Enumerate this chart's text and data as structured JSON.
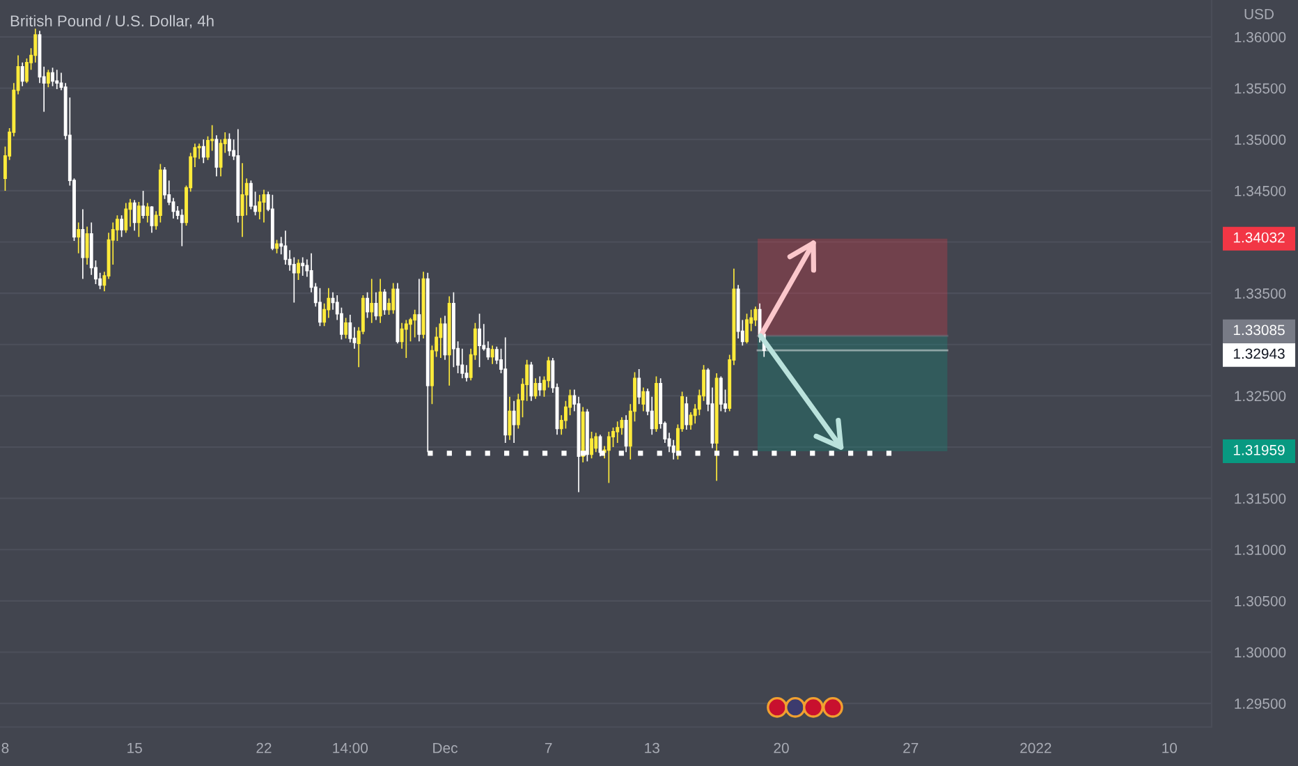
{
  "chart_data": {
    "type": "candlestick",
    "title": "British Pound / U.S. Dollar, 4h",
    "ylabel": "USD",
    "categories": [
      "8",
      null,
      null,
      null,
      null,
      null,
      null,
      null,
      null,
      null,
      null,
      null,
      null,
      null,
      null,
      null,
      null,
      null,
      null,
      null,
      null,
      null,
      null,
      null,
      null,
      null,
      null,
      null,
      null,
      null,
      "15",
      null,
      null,
      null,
      null,
      null,
      null,
      null,
      null,
      null,
      null,
      null,
      null,
      null,
      null,
      null,
      null,
      null,
      null,
      null,
      null,
      null,
      null,
      null,
      null,
      null,
      null,
      null,
      null,
      null,
      "22",
      null,
      null,
      null,
      null,
      null,
      null,
      null,
      null,
      null,
      null,
      null,
      null,
      null,
      null,
      null,
      null,
      null,
      null,
      null,
      "14:00",
      null,
      null,
      null,
      null,
      null,
      null,
      null,
      null,
      null,
      null,
      null,
      null,
      null,
      null,
      null,
      null,
      null,
      null,
      null,
      null,
      null,
      "Dec",
      null,
      null,
      null,
      null,
      null,
      null,
      null,
      null,
      null,
      null,
      null,
      null,
      null,
      null,
      null,
      null,
      null,
      null,
      null,
      null,
      null,
      null,
      null,
      "7",
      null,
      null,
      null,
      null,
      null,
      null,
      null,
      null,
      null,
      null,
      null,
      null,
      null,
      null,
      null,
      null,
      null,
      null,
      null,
      null,
      null,
      null,
      null,
      "13",
      null,
      null,
      null,
      null,
      null,
      null,
      null,
      null,
      null,
      null,
      null,
      null,
      null,
      null,
      null,
      null,
      null,
      null,
      null,
      null,
      null,
      null,
      null,
      null,
      null,
      null,
      null,
      null,
      null,
      "20",
      null,
      null,
      null,
      null,
      null,
      null,
      null,
      null,
      null,
      null,
      null,
      null,
      null,
      null,
      null,
      null,
      null,
      null,
      null,
      null,
      null,
      null,
      null,
      null,
      null,
      null,
      null,
      null,
      null,
      "27",
      null,
      null,
      null,
      null,
      null,
      null,
      null,
      null,
      null,
      null,
      null,
      null,
      null,
      null,
      null,
      null,
      null,
      null,
      null,
      null,
      null,
      null,
      null,
      null,
      null,
      null,
      null,
      null,
      "2022",
      null,
      null,
      null,
      null,
      null,
      null,
      null,
      null,
      null,
      null,
      null,
      null,
      null,
      null,
      null,
      null,
      null,
      null,
      null,
      null,
      null,
      null,
      null,
      null,
      null,
      null,
      null,
      null,
      null,
      null,
      "10",
      null,
      null,
      null,
      null,
      null,
      null,
      null,
      null,
      null
    ],
    "ohlc": [
      [
        1.3462,
        1.3493,
        1.345,
        1.3484
      ],
      [
        1.3484,
        1.3511,
        1.348,
        1.3507
      ],
      [
        1.3507,
        1.3555,
        1.3503,
        1.3548
      ],
      [
        1.3548,
        1.3582,
        1.3544,
        1.3571
      ],
      [
        1.3571,
        1.3575,
        1.3552,
        1.3557
      ],
      [
        1.3557,
        1.3579,
        1.3555,
        1.3575
      ],
      [
        1.3575,
        1.3589,
        1.3568,
        1.3582
      ],
      [
        1.3582,
        1.3608,
        1.3575,
        1.3602
      ],
      [
        1.3602,
        1.3606,
        1.3555,
        1.3561
      ],
      [
        1.3561,
        1.3571,
        1.3527,
        1.3555
      ],
      [
        1.3555,
        1.3568,
        1.3551,
        1.3565
      ],
      [
        1.3565,
        1.357,
        1.3552,
        1.3557
      ],
      [
        1.3557,
        1.3568,
        1.3549,
        1.3555
      ],
      [
        1.3555,
        1.3565,
        1.3548,
        1.3551
      ],
      [
        1.3551,
        1.3555,
        1.35,
        1.3504
      ],
      [
        1.3504,
        1.3541,
        1.3455,
        1.346
      ],
      [
        1.346,
        1.3462,
        1.3401,
        1.3405
      ],
      [
        1.3405,
        1.3419,
        1.3389,
        1.3412
      ],
      [
        1.3412,
        1.3432,
        1.3364,
        1.3385
      ],
      [
        1.3385,
        1.3415,
        1.3378,
        1.3408
      ],
      [
        1.3408,
        1.3419,
        1.3368,
        1.3375
      ],
      [
        1.3375,
        1.3382,
        1.3359,
        1.3364
      ],
      [
        1.3364,
        1.337,
        1.3354,
        1.3358
      ],
      [
        1.3358,
        1.3371,
        1.3352,
        1.3367
      ],
      [
        1.3367,
        1.3409,
        1.3364,
        1.3402
      ],
      [
        1.3402,
        1.3419,
        1.3378,
        1.3412
      ],
      [
        1.3412,
        1.3426,
        1.3401,
        1.3422
      ],
      [
        1.3422,
        1.3426,
        1.3405,
        1.3412
      ],
      [
        1.3412,
        1.3438,
        1.3409,
        1.3432
      ],
      [
        1.3432,
        1.3442,
        1.3415,
        1.3438
      ],
      [
        1.3438,
        1.3441,
        1.3411,
        1.3419
      ],
      [
        1.3419,
        1.3439,
        1.3405,
        1.3435
      ],
      [
        1.3435,
        1.345,
        1.3423,
        1.3426
      ],
      [
        1.3426,
        1.3438,
        1.3419,
        1.3434
      ],
      [
        1.3434,
        1.3435,
        1.3409,
        1.3416
      ],
      [
        1.3416,
        1.343,
        1.3412,
        1.3426
      ],
      [
        1.3426,
        1.3476,
        1.3419,
        1.347
      ],
      [
        1.347,
        1.3473,
        1.3442,
        1.3446
      ],
      [
        1.3446,
        1.346,
        1.3436,
        1.3439
      ],
      [
        1.3439,
        1.3443,
        1.3423,
        1.343
      ],
      [
        1.343,
        1.3435,
        1.3422,
        1.3426
      ],
      [
        1.3426,
        1.3432,
        1.3396,
        1.3419
      ],
      [
        1.3419,
        1.3455,
        1.3416,
        1.3453
      ],
      [
        1.3453,
        1.3487,
        1.3449,
        1.3483
      ],
      [
        1.3483,
        1.3496,
        1.3473,
        1.3492
      ],
      [
        1.3492,
        1.3496,
        1.3481,
        1.3493
      ],
      [
        1.3493,
        1.35,
        1.3477,
        1.3483
      ],
      [
        1.3483,
        1.3503,
        1.348,
        1.3499
      ],
      [
        1.3499,
        1.3514,
        1.3489,
        1.35
      ],
      [
        1.35,
        1.3504,
        1.3464,
        1.3473
      ],
      [
        1.3473,
        1.35,
        1.3464,
        1.3496
      ],
      [
        1.3496,
        1.3507,
        1.3487,
        1.35
      ],
      [
        1.35,
        1.3506,
        1.3484,
        1.3489
      ],
      [
        1.3489,
        1.35,
        1.348,
        1.3484
      ],
      [
        1.3484,
        1.351,
        1.3419,
        1.3426
      ],
      [
        1.3426,
        1.3477,
        1.3405,
        1.3446
      ],
      [
        1.3446,
        1.3462,
        1.3426,
        1.3457
      ],
      [
        1.3457,
        1.346,
        1.3432,
        1.3435
      ],
      [
        1.3435,
        1.3449,
        1.3426,
        1.343
      ],
      [
        1.343,
        1.3446,
        1.3422,
        1.3439
      ],
      [
        1.3439,
        1.3451,
        1.3419,
        1.3446
      ],
      [
        1.3446,
        1.3449,
        1.343,
        1.3432
      ],
      [
        1.3432,
        1.3446,
        1.3392,
        1.3394
      ],
      [
        1.3394,
        1.3402,
        1.3389,
        1.3398
      ],
      [
        1.3398,
        1.3405,
        1.3388,
        1.3396
      ],
      [
        1.3396,
        1.3411,
        1.3378,
        1.3383
      ],
      [
        1.3383,
        1.3392,
        1.3372,
        1.3378
      ],
      [
        1.3378,
        1.3385,
        1.3341,
        1.337
      ],
      [
        1.337,
        1.3383,
        1.3363,
        1.3379
      ],
      [
        1.3379,
        1.3385,
        1.3367,
        1.3377
      ],
      [
        1.3377,
        1.3383,
        1.3366,
        1.3372
      ],
      [
        1.3372,
        1.3389,
        1.3351,
        1.3356
      ],
      [
        1.3356,
        1.336,
        1.3337,
        1.3341
      ],
      [
        1.3341,
        1.3355,
        1.3318,
        1.3322
      ],
      [
        1.3322,
        1.334,
        1.3318,
        1.3334
      ],
      [
        1.3334,
        1.3355,
        1.3326,
        1.3345
      ],
      [
        1.3345,
        1.3351,
        1.3334,
        1.3341
      ],
      [
        1.3341,
        1.3348,
        1.3324,
        1.333
      ],
      [
        1.333,
        1.3336,
        1.3305,
        1.331
      ],
      [
        1.331,
        1.3326,
        1.3306,
        1.3321
      ],
      [
        1.3321,
        1.3329,
        1.3302,
        1.3306
      ],
      [
        1.3306,
        1.3317,
        1.3296,
        1.3302
      ],
      [
        1.3301,
        1.3317,
        1.3278,
        1.3313
      ],
      [
        1.3313,
        1.3348,
        1.331,
        1.3345
      ],
      [
        1.3345,
        1.3351,
        1.3326,
        1.3332
      ],
      [
        1.3332,
        1.3364,
        1.3321,
        1.334
      ],
      [
        1.334,
        1.3351,
        1.3324,
        1.3328
      ],
      [
        1.3328,
        1.3364,
        1.3321,
        1.3351
      ],
      [
        1.3351,
        1.3354,
        1.3329,
        1.3334
      ],
      [
        1.3334,
        1.3345,
        1.3329,
        1.334
      ],
      [
        1.3334,
        1.336,
        1.333,
        1.3354
      ],
      [
        1.3354,
        1.336,
        1.3301,
        1.3303
      ],
      [
        1.3303,
        1.3321,
        1.3296,
        1.3315
      ],
      [
        1.3315,
        1.3324,
        1.3287,
        1.332
      ],
      [
        1.332,
        1.3326,
        1.3303,
        1.3324
      ],
      [
        1.3324,
        1.3334,
        1.3307,
        1.3329
      ],
      [
        1.3329,
        1.3364,
        1.3303,
        1.331
      ],
      [
        1.331,
        1.3371,
        1.3306,
        1.3364
      ],
      [
        1.3364,
        1.337,
        1.3195,
        1.326
      ],
      [
        1.326,
        1.3299,
        1.3242,
        1.3294
      ],
      [
        1.3294,
        1.3317,
        1.3288,
        1.3307
      ],
      [
        1.3307,
        1.3326,
        1.3287,
        1.332
      ],
      [
        1.332,
        1.3328,
        1.3285,
        1.329
      ],
      [
        1.329,
        1.3347,
        1.326,
        1.334
      ],
      [
        1.334,
        1.3351,
        1.3278,
        1.3296
      ],
      [
        1.3296,
        1.3303,
        1.3272,
        1.328
      ],
      [
        1.328,
        1.3296,
        1.3267,
        1.3272
      ],
      [
        1.3272,
        1.328,
        1.3264,
        1.3268
      ],
      [
        1.3268,
        1.3296,
        1.3265,
        1.329
      ],
      [
        1.329,
        1.3321,
        1.3285,
        1.3315
      ],
      [
        1.3315,
        1.333,
        1.3278,
        1.3299
      ],
      [
        1.3299,
        1.332,
        1.3294,
        1.3296
      ],
      [
        1.3296,
        1.3303,
        1.3285,
        1.3288
      ],
      [
        1.3288,
        1.3299,
        1.3281,
        1.3295
      ],
      [
        1.3295,
        1.3298,
        1.3281,
        1.3285
      ],
      [
        1.3285,
        1.3296,
        1.3272,
        1.3276
      ],
      [
        1.3276,
        1.3307,
        1.3204,
        1.3212
      ],
      [
        1.3212,
        1.3249,
        1.3207,
        1.3235
      ],
      [
        1.3235,
        1.3245,
        1.3204,
        1.3222
      ],
      [
        1.3222,
        1.3252,
        1.3218,
        1.3246
      ],
      [
        1.3246,
        1.3267,
        1.3229,
        1.3261
      ],
      [
        1.3261,
        1.3285,
        1.3245,
        1.328
      ],
      [
        1.328,
        1.3283,
        1.3245,
        1.325
      ],
      [
        1.325,
        1.3267,
        1.3247,
        1.3262
      ],
      [
        1.3262,
        1.3269,
        1.325,
        1.3256
      ],
      [
        1.3256,
        1.3269,
        1.3249,
        1.3265
      ],
      [
        1.3265,
        1.3288,
        1.3258,
        1.3284
      ],
      [
        1.3284,
        1.3287,
        1.3253,
        1.3258
      ],
      [
        1.3258,
        1.3262,
        1.3212,
        1.3218
      ],
      [
        1.3218,
        1.3231,
        1.3212,
        1.3226
      ],
      [
        1.3226,
        1.3245,
        1.3218,
        1.3239
      ],
      [
        1.3239,
        1.3256,
        1.3231,
        1.325
      ],
      [
        1.325,
        1.3256,
        1.3235,
        1.3242
      ],
      [
        1.3242,
        1.3249,
        1.3156,
        1.3191
      ],
      [
        1.3191,
        1.3239,
        1.3185,
        1.3234
      ],
      [
        1.3234,
        1.3237,
        1.3186,
        1.3193
      ],
      [
        1.3193,
        1.3215,
        1.3189,
        1.3208
      ],
      [
        1.3199,
        1.3214,
        1.3195,
        1.321
      ],
      [
        1.321,
        1.3212,
        1.3191,
        1.3195
      ],
      [
        1.3195,
        1.3201,
        1.3189,
        1.3197
      ],
      [
        1.3197,
        1.3215,
        1.3165,
        1.321
      ],
      [
        1.321,
        1.3219,
        1.32,
        1.3215
      ],
      [
        1.3215,
        1.3225,
        1.3204,
        1.3219
      ],
      [
        1.3219,
        1.3229,
        1.3212,
        1.3226
      ],
      [
        1.3226,
        1.3231,
        1.3195,
        1.3201
      ],
      [
        1.3201,
        1.3242,
        1.3188,
        1.3235
      ],
      [
        1.3235,
        1.3273,
        1.3225,
        1.3267
      ],
      [
        1.3267,
        1.3276,
        1.3242,
        1.3249
      ],
      [
        1.3242,
        1.3258,
        1.3235,
        1.3254
      ],
      [
        1.3254,
        1.3257,
        1.3231,
        1.3235
      ],
      [
        1.3235,
        1.3249,
        1.3212,
        1.3218
      ],
      [
        1.3218,
        1.3269,
        1.3215,
        1.3262
      ],
      [
        1.3262,
        1.3267,
        1.3218,
        1.3223
      ],
      [
        1.3223,
        1.3225,
        1.3204,
        1.3208
      ],
      [
        1.3208,
        1.3214,
        1.3195,
        1.3201
      ],
      [
        1.3201,
        1.3207,
        1.3188,
        1.3195
      ],
      [
        1.3195,
        1.3222,
        1.3188,
        1.3218
      ],
      [
        1.3218,
        1.3254,
        1.3215,
        1.3249
      ],
      [
        1.3242,
        1.3249,
        1.3217,
        1.3222
      ],
      [
        1.3222,
        1.3234,
        1.3217,
        1.3231
      ],
      [
        1.3231,
        1.3242,
        1.3223,
        1.3237
      ],
      [
        1.3237,
        1.3256,
        1.3231,
        1.325
      ],
      [
        1.325,
        1.328,
        1.3245,
        1.3275
      ],
      [
        1.3275,
        1.3277,
        1.3235,
        1.3242
      ],
      [
        1.3242,
        1.3258,
        1.3199,
        1.3204
      ],
      [
        1.3204,
        1.3272,
        1.3167,
        1.3267
      ],
      [
        1.3267,
        1.3269,
        1.3235,
        1.3242
      ],
      [
        1.3242,
        1.3256,
        1.3234,
        1.3238
      ],
      [
        1.3238,
        1.329,
        1.3235,
        1.3285
      ],
      [
        1.3285,
        1.3374,
        1.328,
        1.3354
      ],
      [
        1.3354,
        1.3358,
        1.3306,
        1.3313
      ],
      [
        1.3313,
        1.3324,
        1.3299,
        1.3303
      ],
      [
        1.3303,
        1.333,
        1.3301,
        1.3324
      ],
      [
        1.3321,
        1.3334,
        1.3313,
        1.3326
      ],
      [
        1.3324,
        1.3337,
        1.3318,
        1.3334
      ],
      [
        1.3334,
        1.334,
        1.3302,
        1.331
      ],
      [
        1.331,
        1.3315,
        1.3288,
        1.32943
      ],
      null,
      null,
      null,
      null,
      null,
      null,
      null,
      null,
      null,
      null,
      null,
      null,
      null,
      null,
      null,
      null,
      null,
      null,
      null,
      null,
      null,
      null,
      null,
      null,
      null,
      null,
      null,
      null,
      null,
      null,
      null,
      null,
      null,
      null,
      null,
      null,
      null,
      null,
      null,
      null,
      null,
      null,
      null,
      null,
      null,
      null,
      null,
      null,
      null,
      null,
      null,
      null,
      null,
      null,
      null,
      null,
      null,
      null,
      null,
      null,
      null,
      null,
      null,
      null,
      null,
      null,
      null,
      null,
      null,
      null,
      null,
      null,
      null,
      null,
      null,
      null,
      null,
      null,
      null,
      null,
      null,
      null,
      null,
      null,
      null,
      null,
      null,
      null,
      null,
      null,
      null,
      null,
      null,
      null,
      null,
      null,
      null,
      null,
      null,
      null,
      null,
      null,
      null
    ],
    "colors": [
      "#ffeb3b",
      "#ffeb3b",
      "#ffeb3b",
      "#ffeb3b",
      "#ffffff",
      "#ffeb3b",
      "#ffeb3b",
      "#ffeb3b",
      "#ffffff",
      "#ffffff",
      "#ffeb3b",
      "#ffffff",
      "#ffffff",
      "#ffffff",
      "#ffffff",
      "#ffffff",
      "#ffffff",
      "#ffeb3b",
      "#ffffff",
      "#ffeb3b",
      "#ffffff",
      "#ffffff",
      "#ffffff",
      "#ffeb3b",
      "#ffeb3b",
      "#ffeb3b",
      "#ffeb3b",
      "#ffffff",
      "#ffeb3b",
      "#ffeb3b",
      "#ffffff",
      "#ffeb3b",
      "#ffffff",
      "#ffeb3b",
      "#ffffff",
      "#ffeb3b",
      "#ffeb3b",
      "#ffffff",
      "#ffffff",
      "#ffffff",
      "#ffffff",
      "#ffffff",
      "#ffeb3b",
      "#ffeb3b",
      "#ffeb3b",
      "#ffeb3b",
      "#ffffff",
      "#ffeb3b",
      "#ffeb3b",
      "#ffffff",
      "#ffeb3b",
      "#ffeb3b",
      "#ffffff",
      "#ffffff",
      "#ffffff",
      "#ffeb3b",
      "#ffeb3b",
      "#ffffff",
      "#ffffff",
      "#ffeb3b",
      "#ffeb3b",
      "#ffffff",
      "#ffffff",
      "#ffeb3b",
      "#ffffff",
      "#ffffff",
      "#ffffff",
      "#ffffff",
      "#ffeb3b",
      "#ffffff",
      "#ffffff",
      "#ffffff",
      "#ffffff",
      "#ffffff",
      "#ffeb3b",
      "#ffeb3b",
      "#ffffff",
      "#ffffff",
      "#ffffff",
      "#ffeb3b",
      "#ffffff",
      "#ffffff",
      "#ffeb3b",
      "#ffeb3b",
      "#ffffff",
      "#ffeb3b",
      "#ffffff",
      "#ffeb3b",
      "#ffffff",
      "#ffeb3b",
      "#ffeb3b",
      "#ffffff",
      "#ffeb3b",
      "#ffeb3b",
      "#ffeb3b",
      "#ffeb3b",
      "#ffffff",
      "#ffeb3b",
      "#ffffff",
      "#ffeb3b",
      "#ffeb3b",
      "#ffeb3b",
      "#ffffff",
      "#ffeb3b",
      "#ffffff",
      "#ffffff",
      "#ffffff",
      "#ffffff",
      "#ffeb3b",
      "#ffeb3b",
      "#ffffff",
      "#ffffff",
      "#ffffff",
      "#ffeb3b",
      "#ffffff",
      "#ffffff",
      "#ffffff",
      "#ffeb3b",
      "#ffffff",
      "#ffeb3b",
      "#ffeb3b",
      "#ffeb3b",
      "#ffffff",
      "#ffeb3b",
      "#ffffff",
      "#ffeb3b",
      "#ffeb3b",
      "#ffffff",
      "#ffffff",
      "#ffeb3b",
      "#ffeb3b",
      "#ffeb3b",
      "#ffffff",
      "#ffffff",
      "#ffeb3b",
      "#ffffff",
      "#ffeb3b",
      "#ffeb3b",
      "#ffffff",
      "#ffeb3b",
      "#ffeb3b",
      "#ffeb3b",
      "#ffeb3b",
      "#ffeb3b",
      "#ffffff",
      "#ffeb3b",
      "#ffeb3b",
      "#ffffff",
      "#ffeb3b",
      "#ffffff",
      "#ffffff",
      "#ffeb3b",
      "#ffffff",
      "#ffffff",
      "#ffffff",
      "#ffffff",
      "#ffeb3b",
      "#ffeb3b",
      "#ffffff",
      "#ffeb3b",
      "#ffeb3b",
      "#ffeb3b",
      "#ffeb3b",
      "#ffffff",
      "#ffffff",
      "#ffeb3b",
      "#ffffff",
      "#ffffff",
      "#ffeb3b",
      "#ffeb3b",
      "#ffffff",
      "#ffffff",
      "#ffeb3b",
      "#ffeb3b",
      "#ffeb3b",
      "#ffffff",
      "#ffffff",
      null,
      null,
      null,
      null,
      null,
      null,
      null,
      null,
      null,
      null,
      null,
      null,
      null,
      null,
      null,
      null,
      null,
      null,
      null,
      null,
      null,
      null,
      null,
      null,
      null,
      null,
      null,
      null,
      null,
      null,
      null,
      null,
      null,
      null,
      null,
      null,
      null,
      null,
      null,
      null,
      null,
      null,
      null,
      null,
      null,
      null,
      null,
      null,
      null,
      null,
      null,
      null,
      null,
      null,
      null,
      null,
      null,
      null,
      null,
      null,
      null,
      null,
      null,
      null,
      null,
      null,
      null,
      null,
      null,
      null,
      null,
      null,
      null,
      null,
      null,
      null,
      null,
      null,
      null,
      null,
      null,
      null,
      null,
      null,
      null,
      null,
      null,
      null,
      null,
      null,
      null,
      null,
      null,
      null,
      null,
      null,
      null,
      null,
      null,
      null,
      null,
      null,
      null
    ],
    "ylim": [
      1.2927,
      1.3636
    ],
    "yticks": [
      {
        "value": 1.295,
        "label": "1.29500"
      },
      {
        "value": 1.3,
        "label": "1.30000"
      },
      {
        "value": 1.305,
        "label": "1.30500"
      },
      {
        "value": 1.31,
        "label": "1.31000"
      },
      {
        "value": 1.315,
        "label": "1.31500"
      },
      1.31959,
      {
        "value": 1.32,
        "label": null
      },
      {
        "value": 1.325,
        "label": "1.32500"
      },
      1.32943,
      {
        "value": 1.33,
        "label": null
      },
      1.33085,
      {
        "value": 1.335,
        "label": "1.33500"
      },
      {
        "value": 1.34,
        "label": null
      },
      1.34032,
      {
        "value": 1.345,
        "label": "1.34500"
      },
      {
        "value": 1.35,
        "label": "1.35000"
      },
      {
        "value": 1.355,
        "label": "1.35500"
      },
      {
        "value": 1.36,
        "label": "1.36000"
      }
    ],
    "grid": "y",
    "bands": [
      {
        "axis": "y",
        "from": 1.33085,
        "to": 1.34032,
        "color": "#f23645"
      },
      {
        "axis": "y",
        "from": 1.31959,
        "to": 1.33085,
        "color": "#089981"
      }
    ],
    "ref_lines": [
      {
        "axis": "y",
        "value": 1.33085,
        "color": "#787b86"
      },
      {
        "axis": "y",
        "value": 1.32943,
        "color": "#ffffff"
      },
      {
        "axis": "y",
        "value": 1.3194,
        "color": "#ffffff",
        "line_style": "dotted"
      }
    ]
  }
}
